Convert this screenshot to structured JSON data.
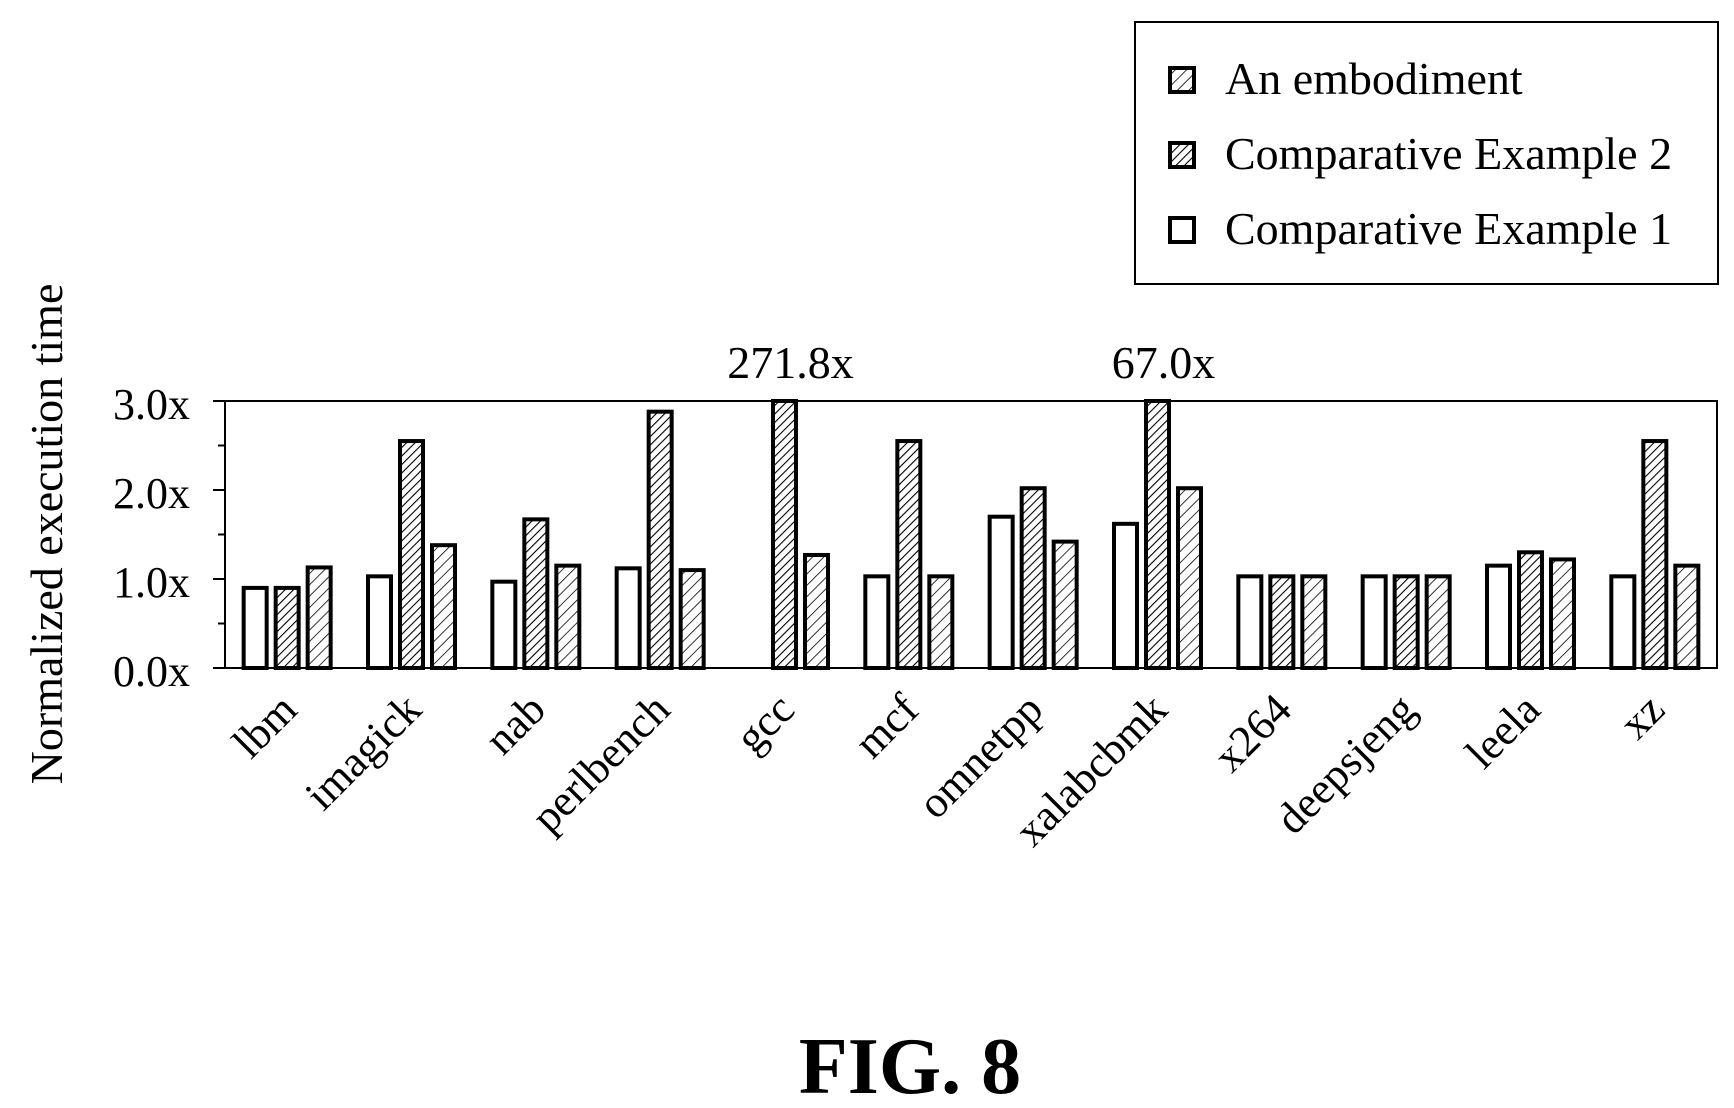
{
  "figure": {
    "caption": "FIG. 8"
  },
  "chart_data": {
    "type": "bar",
    "ylabel": "Normalized execution time",
    "xlabel": "",
    "ylim": [
      0,
      3
    ],
    "yticks": [
      "0.0x",
      "1.0x",
      "2.0x",
      "3.0x"
    ],
    "legend_position": "top-right",
    "categories": [
      "lbm",
      "imagick",
      "nab",
      "perlbench",
      "gcc",
      "mcf",
      "omnetpp",
      "xalabcbmk",
      "x264",
      "deepsjeng",
      "leela",
      "xz"
    ],
    "series": [
      {
        "name": "Comparative Example 1",
        "pattern": "none",
        "values": [
          0.9,
          1.03,
          0.97,
          1.12,
          null,
          1.03,
          1.7,
          1.62,
          1.03,
          1.03,
          1.15,
          1.03
        ]
      },
      {
        "name": "Comparative Example 2",
        "pattern": "dense",
        "values": [
          0.9,
          2.55,
          1.67,
          2.88,
          3.0,
          2.55,
          2.02,
          3.0,
          1.03,
          1.03,
          1.3,
          2.55
        ]
      },
      {
        "name": "An embodiment",
        "pattern": "sparse",
        "values": [
          1.13,
          1.38,
          1.15,
          1.1,
          1.27,
          1.03,
          1.42,
          2.02,
          1.03,
          1.03,
          1.22,
          1.15
        ]
      }
    ],
    "legend_order": [
      "An embodiment",
      "Comparative Example 2",
      "Comparative Example 1"
    ],
    "annotations": [
      {
        "category": "gcc",
        "text": "271.8x"
      },
      {
        "category": "xalabcbmk",
        "text": "67.0x"
      }
    ],
    "colors": {
      "stroke": "#000000",
      "fill": "#ffffff"
    }
  }
}
